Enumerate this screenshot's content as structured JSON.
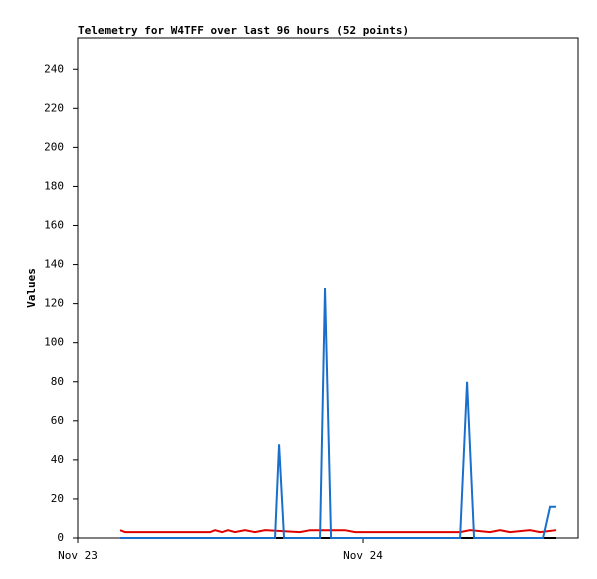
{
  "chart_data": {
    "type": "line",
    "title": "Telemetry for W4TFF over last 96 hours (52 points)",
    "y_label": "Values",
    "xlim": [
      0,
      42.1
    ],
    "ylim": [
      0,
      256
    ],
    "xticks": [
      {
        "value": 0,
        "label": "Nov 23"
      },
      {
        "value": 24,
        "label": "Nov 24"
      }
    ],
    "yticks": [
      0,
      20,
      40,
      60,
      80,
      100,
      120,
      140,
      160,
      180,
      200,
      220,
      240
    ],
    "grid": false,
    "series": [
      {
        "color": "#000000",
        "x": [
          3.54,
          40.25
        ],
        "values": [
          0,
          0
        ]
      },
      {
        "color": "#e00000",
        "x": [
          3.54,
          3.96,
          11.12,
          11.54,
          12.13,
          12.63,
          13.22,
          14.06,
          14.91,
          15.75,
          18.69,
          19.54,
          22.48,
          23.33,
          32.17,
          33.01,
          34.69,
          35.54,
          36.38,
          38.06,
          38.91,
          40.25
        ],
        "values": [
          4,
          3,
          3,
          4,
          3,
          4,
          3,
          4,
          3,
          4,
          3,
          4,
          4,
          3,
          3,
          4,
          3,
          4,
          3,
          4,
          3,
          4
        ]
      },
      {
        "color": "#1a6fcc",
        "x": [
          3.54,
          16.59,
          16.93,
          17.35,
          20.38,
          20.8,
          21.31,
          32.17,
          32.76,
          33.35,
          39.16,
          39.75,
          40.25
        ],
        "values": [
          0,
          0,
          48,
          0,
          0,
          128,
          0,
          0,
          80,
          0,
          0,
          16,
          16
        ]
      }
    ]
  }
}
